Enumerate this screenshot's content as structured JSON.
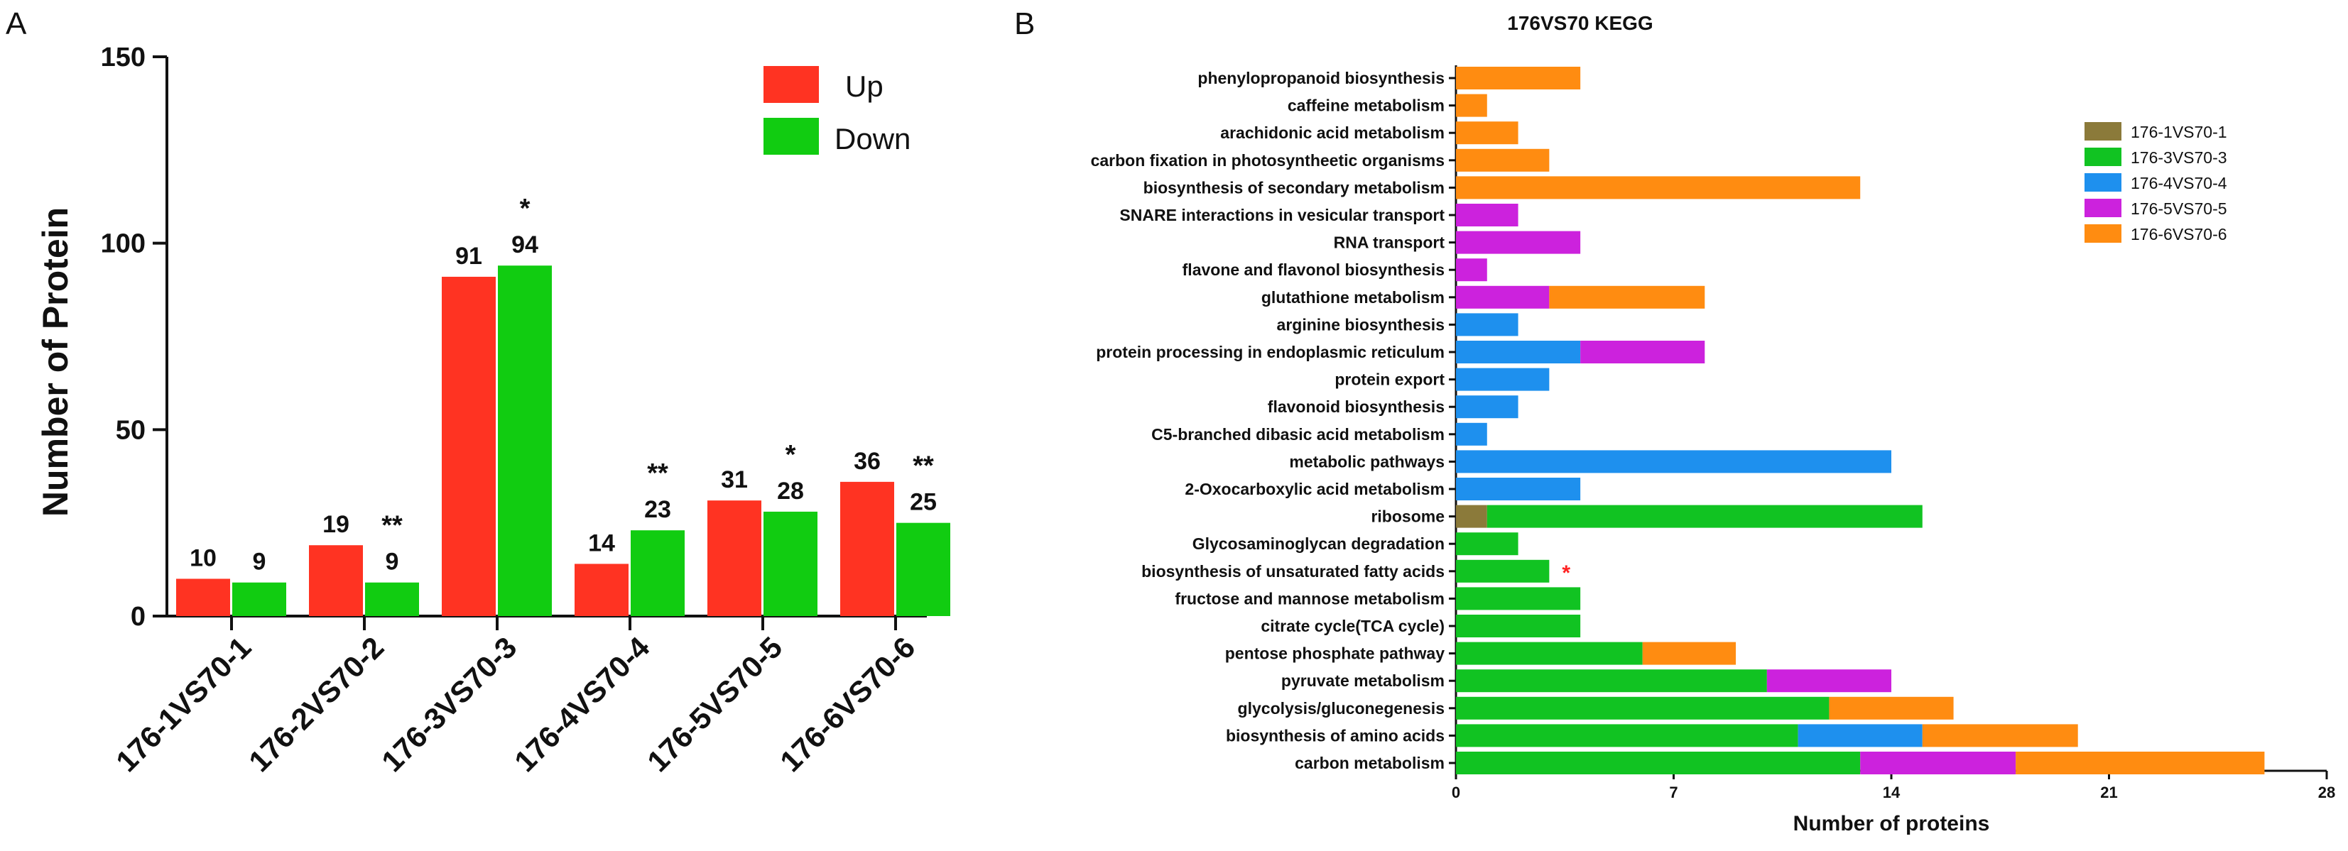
{
  "colors": {
    "up": "#ff3322",
    "down": "#11cc11",
    "s1": "#8b7a3a",
    "s3": "#11c322",
    "s4": "#1e90ee",
    "s5": "#cc22dd",
    "s6": "#ff8c11",
    "asterisk": "#ff2222"
  },
  "panelA": {
    "letter": "A",
    "chart_data": {
      "type": "bar",
      "categories": [
        "176-1VS70-1",
        "176-2VS70-2",
        "176-3VS70-3",
        "176-4VS70-4",
        "176-5VS70-5",
        "176-6VS70-6"
      ],
      "series": [
        {
          "name": "Up",
          "values": [
            10,
            19,
            91,
            14,
            31,
            36
          ],
          "value_labels": [
            "10",
            "19",
            "91",
            "14",
            "31",
            "36"
          ],
          "significance": [
            "",
            "",
            "",
            "",
            "",
            ""
          ]
        },
        {
          "name": "Down",
          "values": [
            9,
            9,
            94,
            23,
            28,
            25
          ],
          "value_labels": [
            "9",
            "9",
            "94",
            "23",
            "28",
            "25"
          ],
          "significance": [
            "",
            "**",
            "*",
            "**",
            "*",
            "**"
          ]
        }
      ],
      "ylabel": "Number of Protein",
      "ylim": [
        0,
        150
      ],
      "yticks": [
        "0",
        "50",
        "100",
        "150"
      ],
      "legend_position": "top-right"
    }
  },
  "panelB": {
    "letter": "B",
    "chart_data": {
      "type": "bar",
      "orientation": "horizontal-stacked",
      "title": "176VS70 KEGG",
      "xlabel": "Number of proteins",
      "xlim": [
        0,
        28
      ],
      "xticks": [
        "0",
        "7",
        "14",
        "21",
        "28"
      ],
      "legend_position": "top-right",
      "series_names": [
        "176-1VS70-1",
        "176-3VS70-3",
        "176-4VS70-4",
        "176-5VS70-5",
        "176-6VS70-6"
      ],
      "categories": [
        "phenylopropanoid biosynthesis",
        "caffeine metabolism",
        "arachidonic acid metabolism",
        "carbon fixation in photosyntheetic organisms",
        "biosynthesis of secondary metabolism",
        "SNARE interactions in vesicular transport",
        "RNA transport",
        "flavone and flavonol biosynthesis",
        "glutathione metabolism",
        "arginine biosynthesis",
        "protein processing in endoplasmic reticulum",
        "protein export",
        "flavonoid biosynthesis",
        "C5-branched dibasic acid metabolism",
        "metabolic pathways",
        "2-Oxocarboxylic acid metabolism",
        "ribosome",
        "Glycosaminoglycan degradation",
        "biosynthesis of unsaturated fatty acids",
        "fructose and mannose metabolism",
        "citrate cycle(TCA cycle)",
        "pentose phosphate pathway",
        "pyruvate metabolism",
        "glycolysis/gluconegenesis",
        "biosynthesis of amino acids",
        "carbon metabolism"
      ],
      "series": [
        {
          "name": "176-1VS70-1",
          "values": [
            0,
            0,
            0,
            0,
            0,
            0,
            0,
            0,
            0,
            0,
            0,
            0,
            0,
            0,
            0,
            0,
            1,
            0,
            0,
            0,
            0,
            0,
            0,
            0,
            0,
            0
          ]
        },
        {
          "name": "176-3VS70-3",
          "values": [
            0,
            0,
            0,
            0,
            0,
            0,
            0,
            0,
            0,
            0,
            0,
            0,
            0,
            0,
            0,
            0,
            14,
            2,
            3,
            4,
            4,
            6,
            10,
            12,
            11,
            13
          ]
        },
        {
          "name": "176-4VS70-4",
          "values": [
            0,
            0,
            0,
            0,
            0,
            0,
            0,
            0,
            0,
            2,
            4,
            3,
            2,
            1,
            14,
            4,
            0,
            0,
            0,
            0,
            0,
            0,
            0,
            0,
            4,
            0
          ]
        },
        {
          "name": "176-5VS70-5",
          "values": [
            0,
            0,
            0,
            0,
            0,
            2,
            4,
            1,
            3,
            0,
            4,
            0,
            0,
            0,
            0,
            0,
            0,
            0,
            0,
            0,
            0,
            0,
            4,
            0,
            0,
            5
          ]
        },
        {
          "name": "176-6VS70-6",
          "values": [
            4,
            1,
            2,
            3,
            13,
            0,
            0,
            0,
            5,
            0,
            0,
            0,
            0,
            0,
            0,
            0,
            0,
            0,
            0,
            0,
            0,
            3,
            0,
            4,
            5,
            8
          ]
        }
      ],
      "marked_category": "biosynthesis of unsaturated fatty acids",
      "marker": "*"
    }
  }
}
